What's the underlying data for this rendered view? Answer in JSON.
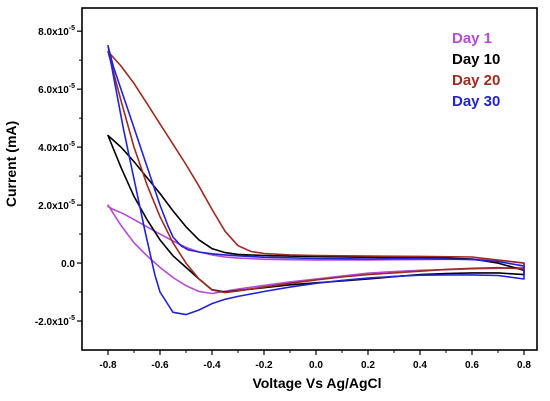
{
  "chart_data": {
    "type": "line",
    "xlabel": "Voltage Vs Ag/AgCl",
    "ylabel": "Current (mA)",
    "xlim": [
      -0.9,
      0.85
    ],
    "ylim": [
      -3e-05,
      8.8e-05
    ],
    "x_ticks": [
      -0.8,
      -0.6,
      -0.4,
      -0.2,
      0.0,
      0.2,
      0.4,
      0.6,
      0.8
    ],
    "x_tick_labels": [
      "-0.8",
      "-0.6",
      "-0.4",
      "-0.2",
      "0.0",
      "0.2",
      "0.4",
      "0.6",
      "0.8"
    ],
    "y_ticks": [
      -2e-05,
      0,
      2e-05,
      4e-05,
      6e-05,
      8e-05
    ],
    "y_tick_labels": [
      {
        "base": "-2.0x10",
        "exp": "-5"
      },
      {
        "base": "0.0",
        "exp": ""
      },
      {
        "base": "2.0x10",
        "exp": "-5"
      },
      {
        "base": "4.0x10",
        "exp": "-5"
      },
      {
        "base": "6.0x10",
        "exp": "-5"
      },
      {
        "base": "8.0x10",
        "exp": "-5"
      }
    ],
    "grid": false,
    "legend_position": "top-right",
    "series": [
      {
        "name": "Day 1",
        "color": "#b44bd6",
        "x": [
          -0.8,
          -0.78,
          -0.74,
          -0.7,
          -0.65,
          -0.6,
          -0.55,
          -0.5,
          -0.45,
          -0.4,
          -0.35,
          -0.3,
          -0.2,
          -0.1,
          0.0,
          0.1,
          0.2,
          0.3,
          0.4,
          0.5,
          0.6,
          0.7,
          0.8,
          0.8,
          0.7,
          0.6,
          0.5,
          0.4,
          0.3,
          0.2,
          0.1,
          0.0,
          -0.1,
          -0.2,
          -0.3,
          -0.4,
          -0.45,
          -0.5,
          -0.55,
          -0.6,
          -0.65,
          -0.7,
          -0.75,
          -0.8
        ],
        "y": [
          1.95e-05,
          1.85e-05,
          1.7e-05,
          1.5e-05,
          1.25e-05,
          1e-05,
          7.6e-06,
          5.4e-06,
          3.8e-06,
          2.8e-06,
          2.1e-06,
          1.7e-06,
          1.3e-06,
          1.15e-06,
          1.1e-06,
          1.1e-06,
          1.1e-06,
          1.15e-06,
          1.2e-06,
          1.3e-06,
          1.3e-06,
          1e-06,
          0.0,
          -1.5e-06,
          -1.8e-06,
          -2e-06,
          -2.3e-06,
          -2.5e-06,
          -2.9e-06,
          -3.5e-06,
          -4.5e-06,
          -5.5e-06,
          -6.5e-06,
          -7.7e-06,
          -9e-06,
          -1.05e-05,
          -9.8e-06,
          -7.8e-06,
          -5e-06,
          -1.5e-06,
          2.5e-06,
          7e-06,
          1.3e-05,
          2e-05
        ]
      },
      {
        "name": "Day 10",
        "color": "#000000",
        "x": [
          -0.8,
          -0.75,
          -0.7,
          -0.65,
          -0.6,
          -0.55,
          -0.5,
          -0.45,
          -0.4,
          -0.35,
          -0.3,
          -0.2,
          -0.1,
          0.0,
          0.2,
          0.4,
          0.6,
          0.7,
          0.8,
          0.8,
          0.7,
          0.6,
          0.5,
          0.4,
          0.3,
          0.2,
          0.1,
          0.0,
          -0.1,
          -0.2,
          -0.3,
          -0.35,
          -0.4,
          -0.45,
          -0.5,
          -0.55,
          -0.6,
          -0.65,
          -0.7,
          -0.75,
          -0.8
        ],
        "y": [
          4.4e-05,
          4e-05,
          3.5e-05,
          2.95e-05,
          2.4e-05,
          1.8e-05,
          1.25e-05,
          8e-06,
          5e-06,
          3.6e-06,
          3e-06,
          2.6e-06,
          2.4e-06,
          2.3e-06,
          2e-06,
          2e-06,
          1.4e-06,
          0.0,
          -2.5e-06,
          -4e-06,
          -3.4e-06,
          -3.4e-06,
          -3.6e-06,
          -4e-06,
          -4.7e-06,
          -5.5e-06,
          -6.2e-06,
          -6.8e-06,
          -7.5e-06,
          -8.5e-06,
          -9.5e-06,
          -1e-05,
          -9.2e-06,
          -5.5e-06,
          -1.5e-06,
          2.5e-06,
          8e-06,
          1.5e-05,
          2.3e-05,
          3.3e-05,
          4.4e-05
        ]
      },
      {
        "name": "Day 20",
        "color": "#9c2b20",
        "x": [
          -0.8,
          -0.75,
          -0.7,
          -0.65,
          -0.6,
          -0.55,
          -0.5,
          -0.45,
          -0.4,
          -0.35,
          -0.3,
          -0.25,
          -0.2,
          -0.1,
          0.0,
          0.2,
          0.4,
          0.6,
          0.8,
          0.8,
          0.7,
          0.6,
          0.5,
          0.4,
          0.3,
          0.2,
          0.1,
          0.0,
          -0.1,
          -0.2,
          -0.3,
          -0.35,
          -0.4,
          -0.45,
          -0.5,
          -0.55,
          -0.6,
          -0.65,
          -0.7,
          -0.75,
          -0.8
        ],
        "y": [
          7.3e-05,
          6.8e-05,
          6.2e-05,
          5.5e-05,
          4.8e-05,
          4.1e-05,
          3.4e-05,
          2.65e-05,
          1.85e-05,
          1.1e-05,
          6e-06,
          4e-06,
          3.3e-06,
          2.8e-06,
          2.6e-06,
          2.4e-06,
          2.3e-06,
          2.1e-06,
          0.0,
          -2e-06,
          -1.6e-06,
          -1.8e-06,
          -2.2e-06,
          -2.8e-06,
          -3.4e-06,
          -4e-06,
          -4.8e-06,
          -5.8e-06,
          -7e-06,
          -8.3e-06,
          -9.6e-06,
          -1.02e-05,
          -9.3e-06,
          -5.5e-06,
          0.0,
          7e-06,
          1.6e-05,
          2.7e-05,
          4e-05,
          5.6e-05,
          7.3e-05
        ]
      },
      {
        "name": "Day 30",
        "color": "#2323d6",
        "x": [
          -0.8,
          -0.78,
          -0.75,
          -0.72,
          -0.69,
          -0.66,
          -0.63,
          -0.6,
          -0.57,
          -0.55,
          -0.52,
          -0.49,
          -0.45,
          -0.4,
          -0.35,
          -0.3,
          -0.2,
          -0.1,
          0.0,
          0.1,
          0.2,
          0.3,
          0.4,
          0.5,
          0.6,
          0.7,
          0.8,
          0.8,
          0.7,
          0.6,
          0.5,
          0.4,
          0.3,
          0.2,
          0.1,
          0.0,
          -0.1,
          -0.2,
          -0.3,
          -0.35,
          -0.4,
          -0.45,
          -0.5,
          -0.55,
          -0.6,
          -0.62,
          -0.66,
          -0.7,
          -0.74,
          -0.78,
          -0.8
        ],
        "y": [
          7.5e-05,
          6.8e-05,
          6e-05,
          5.2e-05,
          4.4e-05,
          3.6e-05,
          2.8e-05,
          2e-05,
          1.3e-05,
          9e-06,
          6e-06,
          4.5e-06,
          3.8e-06,
          3.2e-06,
          2.8e-06,
          2.5e-06,
          2e-06,
          1.8e-06,
          1.6e-06,
          1.5e-06,
          1.4e-06,
          1.5e-06,
          1.5e-06,
          1.4e-06,
          1.2e-06,
          5e-07,
          -1e-06,
          -5.5e-06,
          -4.3e-06,
          -4.1e-06,
          -4.1e-06,
          -4.2e-06,
          -4.6e-06,
          -5.2e-06,
          -6e-06,
          -7e-06,
          -8.3e-06,
          -9.8e-06,
          -1.15e-05,
          -1.25e-05,
          -1.4e-05,
          -1.62e-05,
          -1.78e-05,
          -1.7e-05,
          -1e-05,
          -4e-06,
          1.2e-05,
          2.9e-05,
          4.6e-05,
          6.5e-05,
          7.5e-05
        ]
      }
    ]
  }
}
